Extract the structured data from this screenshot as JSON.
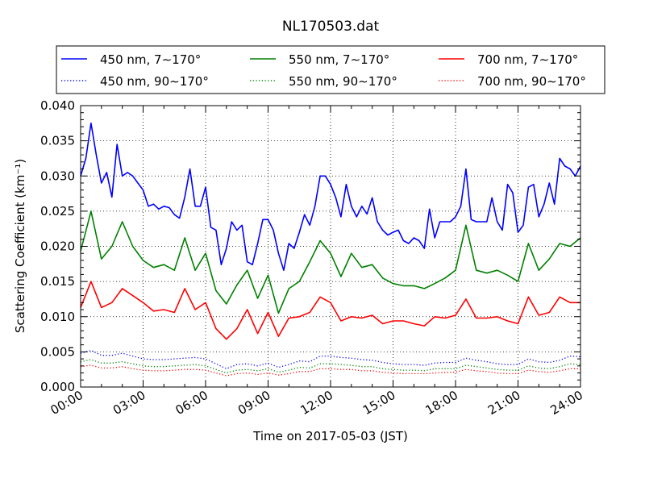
{
  "chart_data": {
    "type": "line",
    "title": "NL170503.dat",
    "xlabel": "Time on 2017-05-03 (JST)",
    "ylabel": "Scattering Coefficient (km⁻¹)",
    "xlim": [
      0,
      24
    ],
    "ylim": [
      0,
      0.04
    ],
    "x_unit": "hours",
    "xticks": [
      0,
      3,
      6,
      9,
      12,
      15,
      18,
      21,
      24
    ],
    "xtick_labels": [
      "00:00",
      "03:00",
      "06:00",
      "09:00",
      "12:00",
      "15:00",
      "18:00",
      "21:00",
      "24:00"
    ],
    "yticks": [
      0,
      0.005,
      0.01,
      0.015,
      0.02,
      0.025,
      0.03,
      0.035,
      0.04
    ],
    "ytick_labels": [
      "0.000",
      "0.005",
      "0.010",
      "0.015",
      "0.020",
      "0.025",
      "0.030",
      "0.035",
      "0.040"
    ],
    "grid": true,
    "legend_placement": "top, above plot, 3 columns",
    "series": [
      {
        "name": "450 nm, 7∼170°",
        "color": "#0000ff",
        "style": "solid",
        "x_step": 0.25,
        "values": [
          0.03,
          0.0325,
          0.0375,
          0.033,
          0.029,
          0.0305,
          0.027,
          0.0345,
          0.03,
          0.0305,
          0.03,
          0.029,
          0.028,
          0.0257,
          0.026,
          0.0253,
          0.0257,
          0.0255,
          0.0245,
          0.024,
          0.027,
          0.031,
          0.0257,
          0.0257,
          0.0284,
          0.0227,
          0.0223,
          0.0174,
          0.0197,
          0.0235,
          0.0223,
          0.023,
          0.0178,
          0.0174,
          0.0204,
          0.0238,
          0.0238,
          0.0223,
          0.019,
          0.0166,
          0.0204,
          0.0197,
          0.022,
          0.0245,
          0.023,
          0.0257,
          0.03,
          0.03,
          0.0288,
          0.0269,
          0.0242,
          0.0288,
          0.0257,
          0.0242,
          0.0257,
          0.0246,
          0.0269,
          0.0235,
          0.0223,
          0.0216,
          0.022,
          0.0223,
          0.0208,
          0.0204,
          0.0212,
          0.0208,
          0.0197,
          0.0253,
          0.0212,
          0.0235,
          0.0235,
          0.0235,
          0.0242,
          0.0257,
          0.031,
          0.0238,
          0.0235,
          0.0235,
          0.0235,
          0.0269,
          0.0235,
          0.0223,
          0.0288,
          0.0276,
          0.022,
          0.023,
          0.0284,
          0.0288,
          0.0242,
          0.026,
          0.029,
          0.026,
          0.0325,
          0.0314,
          0.031,
          0.03,
          0.0314
        ]
      },
      {
        "name": "550 nm, 7∼170°",
        "color": "#008000",
        "style": "solid",
        "x_step": 0.5,
        "values": [
          0.0193,
          0.025,
          0.0182,
          0.02,
          0.0235,
          0.02,
          0.018,
          0.017,
          0.0174,
          0.0166,
          0.0212,
          0.0166,
          0.019,
          0.0137,
          0.0118,
          0.0145,
          0.0166,
          0.0126,
          0.0159,
          0.0105,
          0.014,
          0.015,
          0.0178,
          0.0208,
          0.019,
          0.0157,
          0.019,
          0.017,
          0.0174,
          0.0155,
          0.0147,
          0.0144,
          0.0144,
          0.014,
          0.0147,
          0.0155,
          0.0166,
          0.023,
          0.0166,
          0.0162,
          0.0166,
          0.0159,
          0.015,
          0.0204,
          0.0166,
          0.0182,
          0.0204,
          0.02,
          0.0212
        ]
      },
      {
        "name": "700 nm, 7∼170°",
        "color": "#ff0000",
        "style": "solid",
        "x_step": 0.5,
        "values": [
          0.0113,
          0.015,
          0.0113,
          0.012,
          0.014,
          0.013,
          0.012,
          0.0108,
          0.011,
          0.0106,
          0.014,
          0.011,
          0.012,
          0.0083,
          0.0068,
          0.0083,
          0.011,
          0.0076,
          0.0106,
          0.0072,
          0.0098,
          0.01,
          0.0106,
          0.0128,
          0.012,
          0.0094,
          0.01,
          0.0098,
          0.0102,
          0.009,
          0.0094,
          0.0094,
          0.009,
          0.0087,
          0.01,
          0.0098,
          0.0102,
          0.0125,
          0.0098,
          0.0098,
          0.01,
          0.0094,
          0.009,
          0.0128,
          0.0102,
          0.0106,
          0.0128,
          0.012,
          0.012
        ]
      },
      {
        "name": "450 nm, 90∼170°",
        "color": "#0000ff",
        "style": "dotted",
        "x_step": 0.5,
        "values": [
          0.0048,
          0.0052,
          0.0045,
          0.0045,
          0.0048,
          0.0044,
          0.004,
          0.0039,
          0.0039,
          0.004,
          0.0041,
          0.0042,
          0.004,
          0.0033,
          0.0026,
          0.0032,
          0.0033,
          0.003,
          0.0034,
          0.0028,
          0.0032,
          0.0037,
          0.0036,
          0.0044,
          0.0044,
          0.0042,
          0.0041,
          0.0039,
          0.0038,
          0.0035,
          0.0033,
          0.0032,
          0.0032,
          0.0031,
          0.0034,
          0.0035,
          0.0035,
          0.0041,
          0.0038,
          0.0036,
          0.0033,
          0.0032,
          0.0032,
          0.004,
          0.0036,
          0.0035,
          0.0038,
          0.0044,
          0.0043
        ]
      },
      {
        "name": "550 nm, 90∼170°",
        "color": "#008000",
        "style": "dotted",
        "x_step": 0.5,
        "values": [
          0.0036,
          0.0039,
          0.0034,
          0.0034,
          0.0036,
          0.0033,
          0.003,
          0.0029,
          0.0029,
          0.003,
          0.0031,
          0.0032,
          0.003,
          0.0025,
          0.002,
          0.0024,
          0.0025,
          0.0023,
          0.0026,
          0.0021,
          0.0024,
          0.0028,
          0.0027,
          0.0033,
          0.0033,
          0.0032,
          0.0031,
          0.0029,
          0.0029,
          0.0026,
          0.0025,
          0.0024,
          0.0024,
          0.0023,
          0.0026,
          0.0026,
          0.0026,
          0.0031,
          0.0029,
          0.0027,
          0.0025,
          0.0024,
          0.0024,
          0.003,
          0.0027,
          0.0026,
          0.0029,
          0.0033,
          0.0032
        ]
      },
      {
        "name": "700 nm, 90∼170°",
        "color": "#ff0000",
        "style": "dotted",
        "x_step": 0.5,
        "values": [
          0.0029,
          0.0031,
          0.0027,
          0.0027,
          0.0029,
          0.0026,
          0.0024,
          0.0023,
          0.0023,
          0.0024,
          0.0025,
          0.0025,
          0.0024,
          0.002,
          0.0016,
          0.0019,
          0.002,
          0.0018,
          0.002,
          0.0017,
          0.0019,
          0.0022,
          0.0022,
          0.0026,
          0.0026,
          0.0025,
          0.0025,
          0.0023,
          0.0023,
          0.0021,
          0.002,
          0.0019,
          0.0019,
          0.0019,
          0.002,
          0.0021,
          0.0021,
          0.0025,
          0.0023,
          0.0022,
          0.002,
          0.0019,
          0.0019,
          0.0024,
          0.0022,
          0.0021,
          0.0023,
          0.0026,
          0.0026
        ]
      }
    ],
    "legend_order": [
      0,
      1,
      2,
      3,
      4,
      5
    ]
  }
}
